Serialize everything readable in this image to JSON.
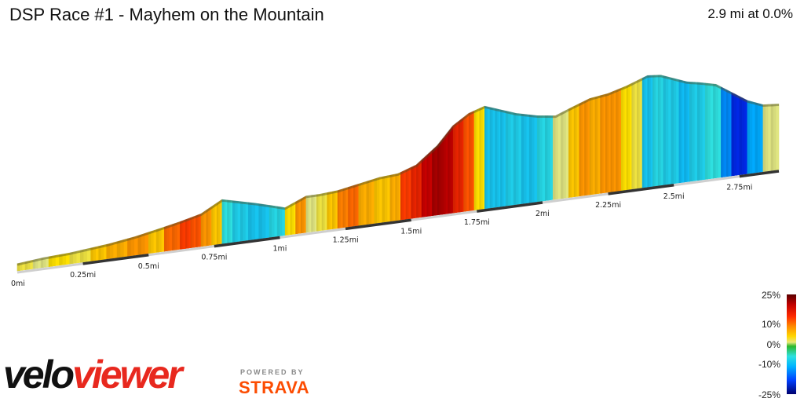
{
  "header": {
    "title": "DSP Race #1 - Mayhem on the Mountain",
    "summary": "2.9 mi at 0.0%"
  },
  "chart_data": {
    "type": "area",
    "title": "DSP Race #1 - Mayhem on the Mountain",
    "x_unit": "mi",
    "total_distance": 2.9,
    "x_ticks": [
      "0mi",
      "0.25mi",
      "0.5mi",
      "0.75mi",
      "1mi",
      "1.25mi",
      "1.5mi",
      "1.75mi",
      "2mi",
      "2.25mi",
      "2.5mi",
      "2.75mi"
    ],
    "x_tick_values": [
      0,
      0.25,
      0.5,
      0.75,
      1,
      1.25,
      1.5,
      1.75,
      2,
      2.25,
      2.5,
      2.75
    ],
    "relative_elevation": {
      "x": [
        0,
        0.1,
        0.2,
        0.3,
        0.35,
        0.45,
        0.55,
        0.62,
        0.7,
        0.78,
        0.84,
        0.9,
        0.97,
        1.02,
        1.1,
        1.15,
        1.22,
        1.3,
        1.38,
        1.45,
        1.52,
        1.6,
        1.66,
        1.72,
        1.78,
        1.82,
        1.86,
        1.9,
        1.98,
        2.05,
        2.1,
        2.18,
        2.25,
        2.32,
        2.4,
        2.45,
        2.5,
        2.55,
        2.6,
        2.66,
        2.72,
        2.78,
        2.84,
        2.9
      ],
      "y": [
        0,
        2,
        3,
        5,
        6,
        9,
        13,
        16,
        20,
        29,
        26,
        23,
        19,
        16,
        23,
        23,
        24,
        27,
        30,
        31,
        36,
        49,
        63,
        71,
        75,
        72,
        69,
        66,
        62,
        60,
        64,
        70,
        72,
        76,
        82,
        81,
        77,
        73,
        71,
        68,
        60,
        52,
        47,
        46
      ]
    },
    "grade_scale": {
      "ticks": [
        "25%",
        "10%",
        "0%",
        "-10%",
        "-25%"
      ],
      "values": [
        25,
        10,
        0,
        -10,
        -25
      ],
      "colors": [
        "#5a0000",
        "#c00000",
        "#ff2a00",
        "#ff8a00",
        "#ffd700",
        "#e8e87a",
        "#2cb82c",
        "#2ee0e0",
        "#00b5ff",
        "#0040ff",
        "#00006e"
      ]
    },
    "grade_segments": {
      "x_end": [
        0.06,
        0.12,
        0.2,
        0.28,
        0.34,
        0.42,
        0.5,
        0.56,
        0.62,
        0.66,
        0.7,
        0.74,
        0.78,
        0.82,
        0.88,
        0.96,
        1.02,
        1.06,
        1.1,
        1.14,
        1.18,
        1.22,
        1.26,
        1.3,
        1.36,
        1.42,
        1.46,
        1.5,
        1.54,
        1.58,
        1.62,
        1.66,
        1.7,
        1.74,
        1.78,
        1.82,
        1.86,
        1.92,
        1.98,
        2.04,
        2.1,
        2.14,
        2.18,
        2.22,
        2.26,
        2.3,
        2.34,
        2.38,
        2.42,
        2.46,
        2.52,
        2.56,
        2.62,
        2.68,
        2.72,
        2.78,
        2.84,
        2.9
      ],
      "grade": [
        2,
        1,
        3,
        2,
        4,
        5,
        6,
        4,
        8,
        10,
        9,
        6,
        4,
        -4,
        -6,
        -7,
        -5,
        3,
        6,
        1,
        2,
        4,
        7,
        8,
        5,
        4,
        5,
        10,
        12,
        15,
        18,
        16,
        12,
        9,
        3,
        -7,
        -7,
        -6,
        -7,
        -5,
        1,
        4,
        6,
        5,
        6,
        6,
        3,
        2,
        -7,
        -5,
        -6,
        -8,
        -6,
        -4,
        -12,
        -18,
        -10,
        1
      ]
    }
  },
  "legend": {
    "label_25": "25%",
    "label_10": "10%",
    "label_0": "0%",
    "label_neg10": "-10%",
    "label_neg25": "-25%"
  },
  "branding": {
    "logo_velo": "velo",
    "logo_viewer": "viewer",
    "powered_by": "POWERED BY",
    "strava": "STRAVA"
  }
}
